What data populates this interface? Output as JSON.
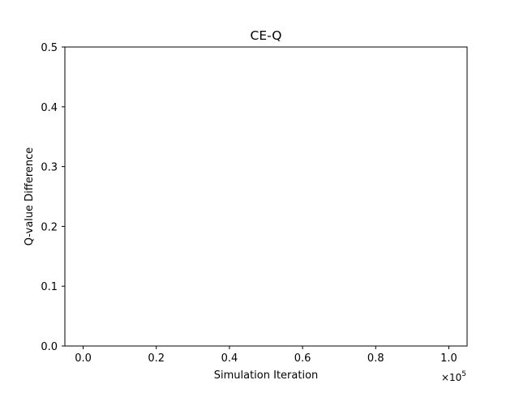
{
  "chart_data": {
    "type": "line",
    "title": "CE-Q",
    "xlabel": "Simulation Iteration",
    "ylabel": "Q-value Difference",
    "x_offset_label": "×10",
    "x_offset_exponent": "5",
    "xlim": [
      -0.05,
      1.05
    ],
    "ylim": [
      0,
      0.5
    ],
    "x_ticks": [
      0.0,
      0.2,
      0.4,
      0.6,
      0.8,
      1.0
    ],
    "x_tick_labels": [
      "0.0",
      "0.2",
      "0.4",
      "0.6",
      "0.8",
      "1.0"
    ],
    "y_ticks": [
      0.0,
      0.1,
      0.2,
      0.3,
      0.4,
      0.5
    ],
    "y_tick_labels": [
      "0.0",
      "0.1",
      "0.2",
      "0.3",
      "0.4",
      "0.5"
    ],
    "grid": false,
    "series": [],
    "colors": {
      "axes": "#000000",
      "background": "#ffffff"
    }
  }
}
